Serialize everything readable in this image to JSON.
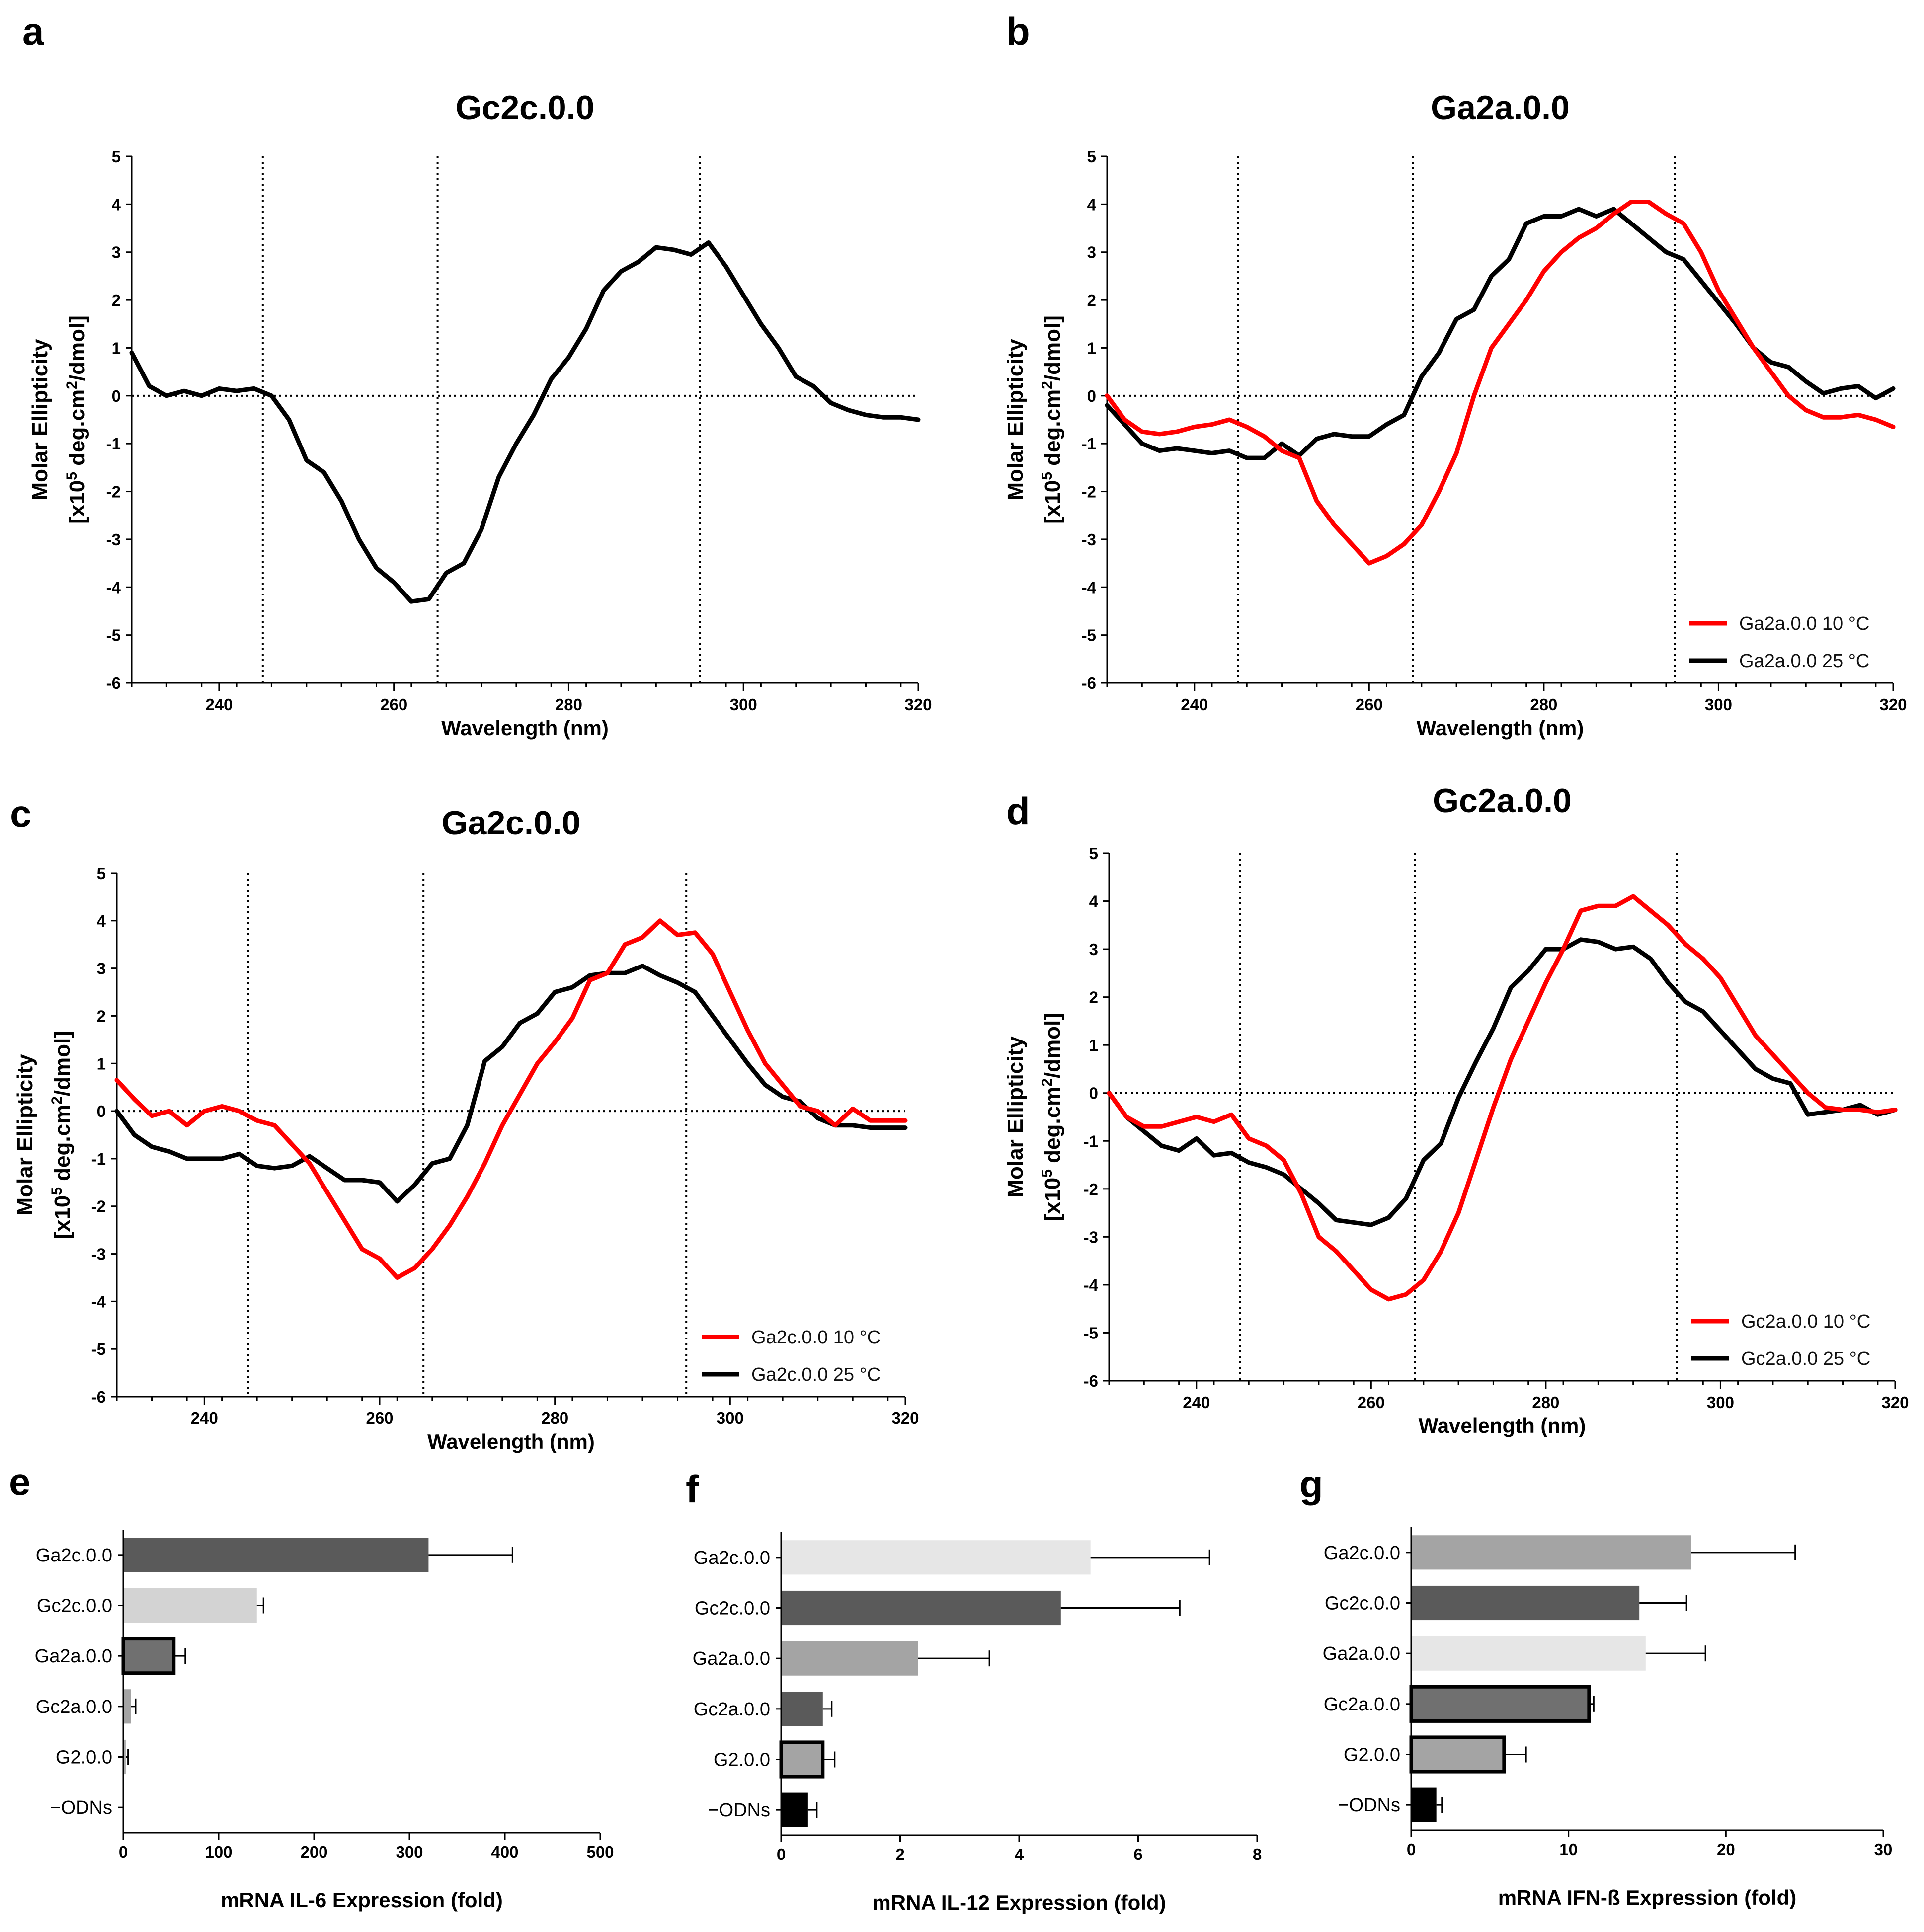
{
  "chart_data": [
    {
      "panel": "a",
      "type": "line",
      "title": "Gc2c.0.0",
      "xlabel": "Wavelength (nm)",
      "ylabel_line1": "Molar Ellipticity",
      "ylabel_line2": "[x10",
      "ylabel_sup": "5",
      "ylabel_line2b": " deg.cm",
      "ylabel_sup2": "2",
      "ylabel_line2c": "/dmol]",
      "xlim": [
        230,
        320
      ],
      "ylim": [
        -6,
        5
      ],
      "x_ticks": [
        240,
        260,
        280,
        300,
        320
      ],
      "y_ticks": [
        5,
        4,
        3,
        2,
        1,
        0,
        -1,
        -2,
        -3,
        -4,
        -5,
        -6
      ],
      "ref_lines_x": [
        245,
        265,
        295
      ],
      "legend": [],
      "series": [
        {
          "name": "Gc2c.0.0",
          "color": "#000000",
          "x": [
            230,
            232,
            234,
            236,
            238,
            240,
            242,
            244,
            246,
            248,
            250,
            252,
            254,
            256,
            258,
            260,
            262,
            264,
            266,
            268,
            270,
            272,
            274,
            276,
            278,
            280,
            282,
            284,
            286,
            288,
            290,
            292,
            294,
            296,
            298,
            300,
            302,
            304,
            306,
            308,
            310,
            312,
            314,
            316,
            318,
            320
          ],
          "y": [
            0.9,
            0.2,
            0.0,
            0.1,
            0.0,
            0.15,
            0.1,
            0.15,
            0.0,
            -0.5,
            -1.35,
            -1.6,
            -2.2,
            -3.0,
            -3.6,
            -3.9,
            -4.3,
            -4.25,
            -3.7,
            -3.5,
            -2.8,
            -1.7,
            -1.0,
            -0.4,
            0.35,
            0.8,
            1.4,
            2.2,
            2.6,
            2.8,
            3.1,
            3.05,
            2.95,
            3.2,
            2.7,
            2.1,
            1.5,
            1.0,
            0.4,
            0.2,
            -0.15,
            -0.3,
            -0.4,
            -0.45,
            -0.45,
            -0.5
          ]
        }
      ]
    },
    {
      "panel": "b",
      "type": "line",
      "title": "Ga2a.0.0",
      "xlabel": "Wavelength (nm)",
      "ylabel_line1": "Molar Ellipticity",
      "ylabel_line2": "[x10",
      "ylabel_sup": "5",
      "ylabel_line2b": " deg.cm",
      "ylabel_sup2": "2",
      "ylabel_line2c": "/dmol]",
      "xlim": [
        230,
        320
      ],
      "ylim": [
        -6,
        5
      ],
      "x_ticks": [
        240,
        260,
        280,
        300,
        320
      ],
      "y_ticks": [
        5,
        4,
        3,
        2,
        1,
        0,
        -1,
        -2,
        -3,
        -4,
        -5,
        -6
      ],
      "ref_lines_x": [
        245,
        265,
        295
      ],
      "legend": [
        "Ga2a.0.0 10 °C",
        "Ga2a.0.0 25 °C"
      ],
      "series": [
        {
          "name": "Ga2a.0.0 10 °C",
          "color": "#ff0000",
          "x": [
            230,
            232,
            234,
            236,
            238,
            240,
            242,
            244,
            246,
            248,
            250,
            252,
            254,
            256,
            258,
            260,
            262,
            264,
            266,
            268,
            270,
            272,
            274,
            276,
            278,
            280,
            282,
            284,
            286,
            288,
            290,
            292,
            294,
            296,
            298,
            300,
            302,
            304,
            306,
            308,
            310,
            312,
            314,
            316,
            318,
            320
          ],
          "y": [
            0.0,
            -0.5,
            -0.75,
            -0.8,
            -0.75,
            -0.65,
            -0.6,
            -0.5,
            -0.65,
            -0.85,
            -1.15,
            -1.3,
            -2.2,
            -2.7,
            -3.1,
            -3.5,
            -3.35,
            -3.1,
            -2.7,
            -2.0,
            -1.2,
            0.0,
            1.0,
            1.5,
            2.0,
            2.6,
            3.0,
            3.3,
            3.5,
            3.8,
            4.05,
            4.05,
            3.8,
            3.6,
            3.0,
            2.2,
            1.6,
            1.0,
            0.5,
            0.0,
            -0.3,
            -0.45,
            -0.45,
            -0.4,
            -0.5,
            -0.65
          ]
        },
        {
          "name": "Ga2a.0.0 25 °C",
          "color": "#000000",
          "x": [
            230,
            232,
            234,
            236,
            238,
            240,
            242,
            244,
            246,
            248,
            250,
            252,
            254,
            256,
            258,
            260,
            262,
            264,
            266,
            268,
            270,
            272,
            274,
            276,
            278,
            280,
            282,
            284,
            286,
            288,
            290,
            292,
            294,
            296,
            298,
            300,
            302,
            304,
            306,
            308,
            310,
            312,
            314,
            316,
            318,
            320
          ],
          "y": [
            -0.2,
            -0.6,
            -1.0,
            -1.15,
            -1.1,
            -1.15,
            -1.2,
            -1.15,
            -1.3,
            -1.3,
            -1.0,
            -1.25,
            -0.9,
            -0.8,
            -0.85,
            -0.85,
            -0.6,
            -0.4,
            0.4,
            0.9,
            1.6,
            1.8,
            2.5,
            2.85,
            3.6,
            3.75,
            3.75,
            3.9,
            3.75,
            3.9,
            3.6,
            3.3,
            3.0,
            2.85,
            2.4,
            1.95,
            1.5,
            1.0,
            0.7,
            0.6,
            0.3,
            0.05,
            0.15,
            0.2,
            -0.05,
            0.15
          ]
        }
      ]
    },
    {
      "panel": "c",
      "type": "line",
      "title": "Ga2c.0.0",
      "xlabel": "Wavelength (nm)",
      "ylabel_line1": "Molar Ellipticity",
      "ylabel_line2": "[x10",
      "ylabel_sup": "5",
      "ylabel_line2b": " deg.cm",
      "ylabel_sup2": "2",
      "ylabel_line2c": "/dmol]",
      "xlim": [
        230,
        320
      ],
      "ylim": [
        -6,
        5
      ],
      "x_ticks": [
        240,
        260,
        280,
        300,
        320
      ],
      "y_ticks": [
        5,
        4,
        3,
        2,
        1,
        0,
        -1,
        -2,
        -3,
        -4,
        -5,
        -6
      ],
      "ref_lines_x": [
        245,
        265,
        295
      ],
      "legend": [
        "Ga2c.0.0 10 °C",
        "Ga2c.0.0 25 °C"
      ],
      "series": [
        {
          "name": "Ga2c.0.0 10 °C",
          "color": "#ff0000",
          "x": [
            230,
            232,
            234,
            236,
            238,
            240,
            242,
            244,
            246,
            248,
            250,
            252,
            254,
            256,
            258,
            260,
            262,
            264,
            266,
            268,
            270,
            272,
            274,
            276,
            278,
            280,
            282,
            284,
            286,
            288,
            290,
            292,
            294,
            296,
            298,
            300,
            302,
            304,
            306,
            308,
            310,
            312,
            314,
            316,
            318,
            320
          ],
          "y": [
            0.65,
            0.25,
            -0.1,
            0.0,
            -0.3,
            0.0,
            0.1,
            0.0,
            -0.2,
            -0.3,
            -0.7,
            -1.1,
            -1.7,
            -2.3,
            -2.9,
            -3.1,
            -3.5,
            -3.3,
            -2.9,
            -2.4,
            -1.8,
            -1.1,
            -0.3,
            0.35,
            1.0,
            1.45,
            1.95,
            2.75,
            2.9,
            3.5,
            3.65,
            4.0,
            3.7,
            3.75,
            3.3,
            2.5,
            1.7,
            1.0,
            0.55,
            0.1,
            0.0,
            -0.3,
            0.05,
            -0.2,
            -0.2,
            -0.2
          ]
        },
        {
          "name": "Ga2c.0.0 25 °C",
          "color": "#000000",
          "x": [
            230,
            232,
            234,
            236,
            238,
            240,
            242,
            244,
            246,
            248,
            250,
            252,
            254,
            256,
            258,
            260,
            262,
            264,
            266,
            268,
            270,
            272,
            274,
            276,
            278,
            280,
            282,
            284,
            286,
            288,
            290,
            292,
            294,
            296,
            298,
            300,
            302,
            304,
            306,
            308,
            310,
            312,
            314,
            316,
            318,
            320
          ],
          "y": [
            0.0,
            -0.5,
            -0.75,
            -0.85,
            -1.0,
            -1.0,
            -1.0,
            -0.9,
            -1.15,
            -1.2,
            -1.15,
            -0.95,
            -1.2,
            -1.45,
            -1.45,
            -1.5,
            -1.9,
            -1.55,
            -1.1,
            -1.0,
            -0.3,
            1.05,
            1.35,
            1.85,
            2.05,
            2.5,
            2.6,
            2.85,
            2.9,
            2.9,
            3.05,
            2.85,
            2.7,
            2.5,
            2.0,
            1.5,
            1.0,
            0.55,
            0.3,
            0.2,
            -0.15,
            -0.3,
            -0.3,
            -0.35,
            -0.35,
            -0.35
          ]
        }
      ]
    },
    {
      "panel": "d",
      "type": "line",
      "title": "Gc2a.0.0",
      "xlabel": "Wavelength (nm)",
      "ylabel_line1": "Molar Ellipticity",
      "ylabel_line2": "[x10",
      "ylabel_sup": "5",
      "ylabel_line2b": " deg.cm",
      "ylabel_sup2": "2",
      "ylabel_line2c": "/dmol]",
      "xlim": [
        230,
        320
      ],
      "ylim": [
        -6,
        5
      ],
      "x_ticks": [
        240,
        260,
        280,
        300,
        320
      ],
      "y_ticks": [
        5,
        4,
        3,
        2,
        1,
        0,
        -1,
        -2,
        -3,
        -4,
        -5,
        -6
      ],
      "ref_lines_x": [
        245,
        265,
        295
      ],
      "legend": [
        "Gc2a.0.0 10 °C",
        "Gc2a.0.0 25 °C"
      ],
      "series": [
        {
          "name": "Gc2a.0.0 10 °C",
          "color": "#ff0000",
          "x": [
            230,
            232,
            234,
            236,
            238,
            240,
            242,
            244,
            246,
            248,
            250,
            252,
            254,
            256,
            258,
            260,
            262,
            264,
            266,
            268,
            270,
            272,
            274,
            276,
            278,
            280,
            282,
            284,
            286,
            288,
            290,
            292,
            294,
            296,
            298,
            300,
            302,
            304,
            306,
            308,
            310,
            312,
            314,
            316,
            318,
            320
          ],
          "y": [
            0.0,
            -0.5,
            -0.7,
            -0.7,
            -0.6,
            -0.5,
            -0.6,
            -0.45,
            -0.95,
            -1.1,
            -1.4,
            -2.1,
            -3.0,
            -3.3,
            -3.7,
            -4.1,
            -4.3,
            -4.2,
            -3.9,
            -3.3,
            -2.5,
            -1.4,
            -0.3,
            0.7,
            1.5,
            2.3,
            3.0,
            3.8,
            3.9,
            3.9,
            4.1,
            3.8,
            3.5,
            3.1,
            2.8,
            2.4,
            1.8,
            1.2,
            0.8,
            0.4,
            0.0,
            -0.3,
            -0.35,
            -0.35,
            -0.4,
            -0.35
          ]
        },
        {
          "name": "Gc2a.0.0 25 °C",
          "color": "#000000",
          "x": [
            230,
            232,
            234,
            236,
            238,
            240,
            242,
            244,
            246,
            248,
            250,
            252,
            254,
            256,
            258,
            260,
            262,
            264,
            266,
            268,
            270,
            272,
            274,
            276,
            278,
            280,
            282,
            284,
            286,
            288,
            290,
            292,
            294,
            296,
            298,
            300,
            302,
            304,
            306,
            308,
            310,
            312,
            314,
            316,
            318,
            320
          ],
          "y": [
            0.0,
            -0.5,
            -0.8,
            -1.1,
            -1.2,
            -0.95,
            -1.3,
            -1.25,
            -1.45,
            -1.55,
            -1.7,
            -2.0,
            -2.3,
            -2.65,
            -2.7,
            -2.75,
            -2.6,
            -2.2,
            -1.4,
            -1.05,
            -0.1,
            0.65,
            1.35,
            2.2,
            2.55,
            3.0,
            3.0,
            3.2,
            3.15,
            3.0,
            3.05,
            2.8,
            2.3,
            1.9,
            1.7,
            1.3,
            0.9,
            0.5,
            0.3,
            0.2,
            -0.45,
            -0.4,
            -0.35,
            -0.25,
            -0.45,
            -0.35
          ]
        }
      ]
    },
    {
      "panel": "e",
      "type": "bar",
      "orientation": "horizontal",
      "xlabel": "mRNA IL-6 Expression (fold)",
      "xlim": [
        0,
        500
      ],
      "x_ticks": [
        0,
        100,
        200,
        300,
        400,
        500
      ],
      "categories": [
        "Ga2c.0.0",
        "Gc2c.0.0",
        "Ga2a.0.0",
        "Gc2a.0.0",
        "G2.0.0",
        "−ODNs"
      ],
      "values": [
        320,
        140,
        53,
        8,
        3,
        0
      ],
      "errors": [
        88,
        7,
        12,
        5,
        2,
        0
      ],
      "colors": [
        "#5a5a5a",
        "#d3d3d3",
        "#707070",
        "#a4a4a4",
        "#b0b0b0",
        "#000000"
      ],
      "outlined": [
        false,
        false,
        true,
        false,
        false,
        false
      ]
    },
    {
      "panel": "f",
      "type": "bar",
      "orientation": "horizontal",
      "xlabel": "mRNA IL-12 Expression (fold)",
      "xlim": [
        0,
        8
      ],
      "x_ticks": [
        0,
        2,
        4,
        6,
        8
      ],
      "categories": [
        "Ga2c.0.0",
        "Gc2c.0.0",
        "Ga2a.0.0",
        "Gc2a.0.0",
        "G2.0.0",
        "−ODNs"
      ],
      "values": [
        5.2,
        4.7,
        2.3,
        0.7,
        0.7,
        0.45
      ],
      "errors": [
        2.0,
        2.0,
        1.2,
        0.15,
        0.2,
        0.15
      ],
      "colors": [
        "#e6e6e6",
        "#5a5a5a",
        "#a4a4a4",
        "#5a5a5a",
        "#a4a4a4",
        "#000000"
      ],
      "outlined": [
        false,
        false,
        false,
        false,
        true,
        false
      ]
    },
    {
      "panel": "g",
      "type": "bar",
      "orientation": "horizontal",
      "xlabel": "mRNA IFN-ß Expression (fold)",
      "xlim": [
        0,
        30
      ],
      "x_ticks": [
        0,
        10,
        20,
        30
      ],
      "categories": [
        "Ga2c.0.0",
        "Gc2c.0.0",
        "Ga2a.0.0",
        "Gc2a.0.0",
        "G2.0.0",
        "−ODNs"
      ],
      "values": [
        17.8,
        14.5,
        14.9,
        11.3,
        5.9,
        1.6
      ],
      "errors": [
        6.6,
        3.0,
        3.8,
        0.3,
        1.4,
        0.35
      ],
      "colors": [
        "#a4a4a4",
        "#5a5a5a",
        "#e6e6e6",
        "#707070",
        "#a4a4a4",
        "#000000"
      ],
      "outlined": [
        false,
        false,
        false,
        true,
        true,
        false
      ]
    }
  ]
}
